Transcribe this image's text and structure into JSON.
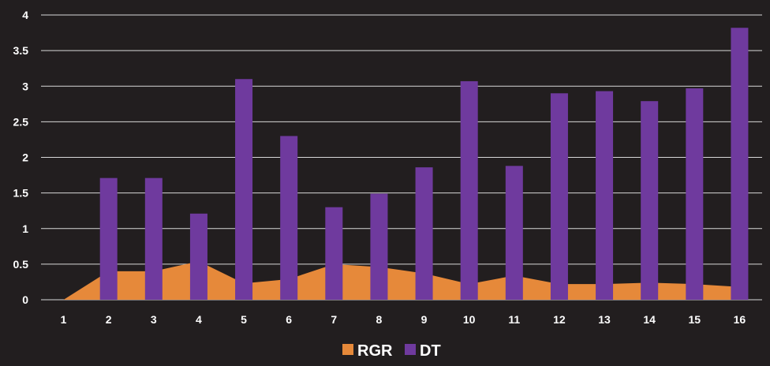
{
  "colors": {
    "background": "#221e1f",
    "grid": "#d8d8d8",
    "rgr": "#e6893a",
    "dt": "#6f3a9e"
  },
  "chart_data": {
    "type": "bar",
    "categories": [
      "1",
      "2",
      "3",
      "4",
      "5",
      "6",
      "7",
      "8",
      "9",
      "10",
      "11",
      "12",
      "13",
      "14",
      "15",
      "16"
    ],
    "ylim": [
      0,
      4
    ],
    "yticks": [
      "0",
      "0.5",
      "1",
      "1.5",
      "2",
      "2.5",
      "3",
      "3.5",
      "4"
    ],
    "ytick_values": [
      0,
      0.5,
      1,
      1.5,
      2,
      2.5,
      3,
      3.5,
      4
    ],
    "grid": true,
    "legend_position": "bottom",
    "series": [
      {
        "name": "RGR",
        "type": "area",
        "values": [
          0,
          0.4,
          0.4,
          0.54,
          0.23,
          0.29,
          0.5,
          0.46,
          0.37,
          0.22,
          0.34,
          0.22,
          0.22,
          0.24,
          0.22,
          0.18
        ]
      },
      {
        "name": "DT",
        "type": "bar",
        "values": [
          0,
          1.71,
          1.71,
          1.21,
          3.1,
          2.3,
          1.3,
          1.49,
          1.86,
          3.07,
          1.88,
          2.9,
          2.93,
          2.79,
          2.97,
          3.82
        ]
      }
    ]
  }
}
